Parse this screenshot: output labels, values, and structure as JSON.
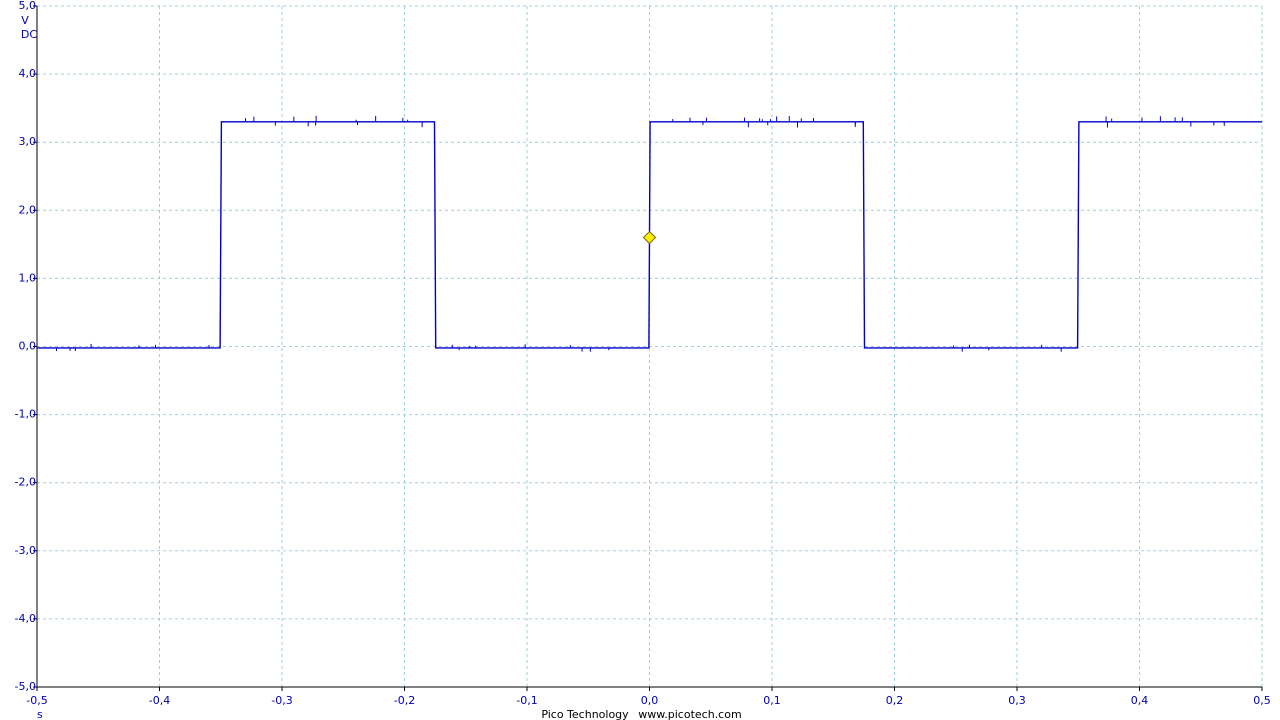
{
  "chart_data": {
    "type": "line",
    "title": "",
    "xlabel": "",
    "ylabel": "",
    "xlim": [
      -0.5,
      0.5
    ],
    "ylim": [
      -5.0,
      5.0
    ],
    "x_unit": "s",
    "y_unit": "V",
    "y_coupling": "DC",
    "x_ticks": [
      "-0,5",
      "-0,4",
      "-0,3",
      "-0,2",
      "-0,1",
      "0,0",
      "0,1",
      "0,2",
      "0,3",
      "0,4",
      "0,5"
    ],
    "x_tick_values": [
      -0.5,
      -0.4,
      -0.3,
      -0.2,
      -0.1,
      0.0,
      0.1,
      0.2,
      0.3,
      0.4,
      0.5
    ],
    "y_ticks": [
      "5,0",
      "4,0",
      "3,0",
      "2,0",
      "1,0",
      "0,0",
      "-1,0",
      "-2,0",
      "-3,0",
      "-4,0",
      "-5,0"
    ],
    "y_tick_values": [
      5.0,
      4.0,
      3.0,
      2.0,
      1.0,
      0.0,
      -1.0,
      -2.0,
      -3.0,
      -4.0,
      -5.0
    ],
    "grid": true,
    "series": [
      {
        "color": "#0000cc",
        "points": [
          [
            -0.5,
            -0.02
          ],
          [
            -0.3505,
            -0.02
          ],
          [
            -0.3495,
            3.3
          ],
          [
            -0.1755,
            3.3
          ],
          [
            -0.1745,
            -0.02
          ],
          [
            -0.0005,
            -0.02
          ],
          [
            0.0005,
            3.3
          ],
          [
            0.1745,
            3.3
          ],
          [
            0.1755,
            -0.02
          ],
          [
            0.3495,
            -0.02
          ],
          [
            0.3505,
            3.3
          ],
          [
            0.5,
            3.3
          ]
        ]
      }
    ],
    "trigger": {
      "x": 0.0,
      "y": 1.6,
      "color": "#ffee00"
    },
    "colors": {
      "axis_text": "#0000b4",
      "trace": "#0000cc",
      "grid": "#9fd0dd"
    }
  },
  "footer": {
    "brand": "Pico Technology",
    "url": "www.picotech.com"
  }
}
